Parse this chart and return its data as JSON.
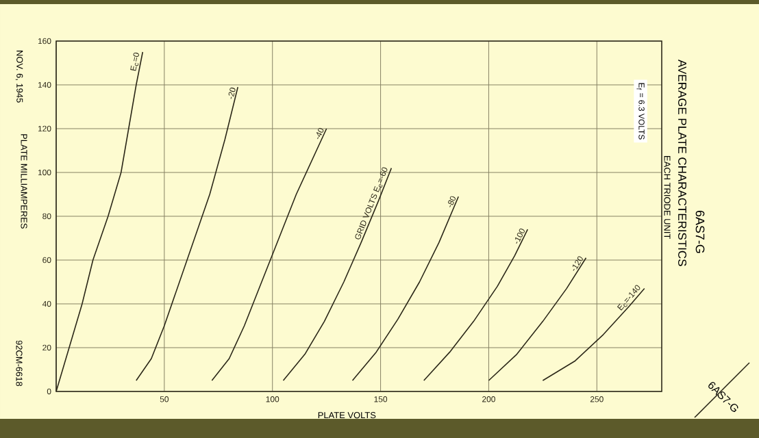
{
  "chart_data": {
    "type": "line",
    "title": "AVERAGE PLATE CHARACTERISTICS",
    "subtitle": "EACH TRIODE UNIT",
    "xlabel": "PLATE VOLTS",
    "ylabel": "PLATE MILLIAMPERES",
    "annotations": [
      "6AS7-G",
      "E$_{f}$ = 6.3 VOLTS",
      "NOV. 6, 1945",
      "92CM-6618",
      "6AS7-G"
    ],
    "xlim": [
      0,
      280
    ],
    "ylim": [
      0,
      160
    ],
    "xticks": [
      {
        "value": 0,
        "label": null
      },
      50,
      100,
      150,
      200,
      250
    ],
    "yticks": [
      0,
      20,
      40,
      60,
      80,
      100,
      120,
      140,
      160
    ],
    "grid": true,
    "series": [
      {
        "name": "E$_{c}$=0",
        "color": "#2b2718",
        "x": [
          0,
          6,
          12,
          17,
          24,
          30,
          37,
          40
        ],
        "values": [
          0,
          20,
          40,
          60,
          80,
          100,
          140,
          155
        ]
      },
      {
        "name": "-20",
        "color": "#2b2718",
        "x": [
          37,
          44,
          50,
          57,
          64,
          71,
          78,
          84
        ],
        "values": [
          5,
          15,
          30,
          50,
          70,
          90,
          115,
          139
        ]
      },
      {
        "name": "-40",
        "color": "#2b2718",
        "x": [
          72,
          80,
          87,
          95,
          103,
          111,
          118,
          125
        ],
        "values": [
          5,
          15,
          30,
          50,
          70,
          90,
          105,
          120
        ]
      },
      {
        "name": "GRID VOLTS E$_{c}$=-60",
        "color": "#2b2718",
        "x": [
          105,
          115,
          124,
          133,
          141,
          149,
          155
        ],
        "values": [
          5,
          17,
          32,
          50,
          68,
          87,
          102
        ]
      },
      {
        "name": "-80",
        "color": "#2b2718",
        "x": [
          137,
          148,
          158,
          168,
          177,
          186
        ],
        "values": [
          5,
          18,
          33,
          50,
          68,
          89
        ]
      },
      {
        "name": "-100",
        "color": "#2b2718",
        "x": [
          170,
          182,
          193,
          204,
          212,
          218
        ],
        "values": [
          5,
          18,
          32,
          48,
          62,
          74
        ]
      },
      {
        "name": "-120",
        "color": "#2b2718",
        "x": [
          200,
          213,
          225,
          236,
          245
        ],
        "values": [
          5,
          17,
          32,
          47,
          61
        ]
      },
      {
        "name": "E$_{c}$=-140",
        "color": "#2b2718",
        "x": [
          225,
          240,
          253,
          265,
          272
        ],
        "values": [
          5,
          14,
          26,
          39,
          47
        ]
      }
    ]
  }
}
